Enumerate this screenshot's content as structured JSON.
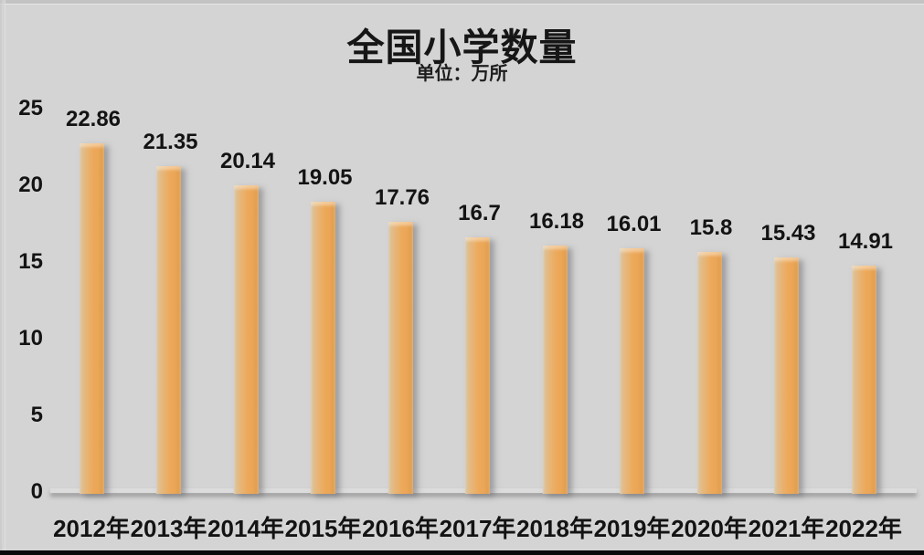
{
  "chart_data": {
    "type": "bar",
    "title": "全国小学数量",
    "subtitle": "单位：万所",
    "unit": "万所",
    "categories": [
      "2012年",
      "2013年",
      "2014年",
      "2015年",
      "2016年",
      "2017年",
      "2018年",
      "2019年",
      "2020年",
      "2021年",
      "2022年"
    ],
    "values": [
      22.86,
      21.35,
      20.14,
      19.05,
      17.76,
      16.7,
      16.18,
      16.01,
      15.8,
      15.43,
      14.91
    ],
    "labels": [
      "22.86",
      "21.35",
      "20.14",
      "19.05",
      "17.76",
      "16.7",
      "16.18",
      "16.01",
      "15.8",
      "15.43",
      "14.91"
    ],
    "yticks": [
      0,
      5,
      10,
      15,
      20,
      25
    ],
    "ylim": [
      0,
      25
    ],
    "grid": "off",
    "legend": "none",
    "colors": {
      "background": "#d4d4d4",
      "bar_gradient": [
        "#d8c5a6",
        "#e5b87e",
        "#eda95a",
        "#eba556",
        "#dd9c4e"
      ],
      "text": "#141414",
      "axis_line": "#dcdcdc"
    }
  }
}
